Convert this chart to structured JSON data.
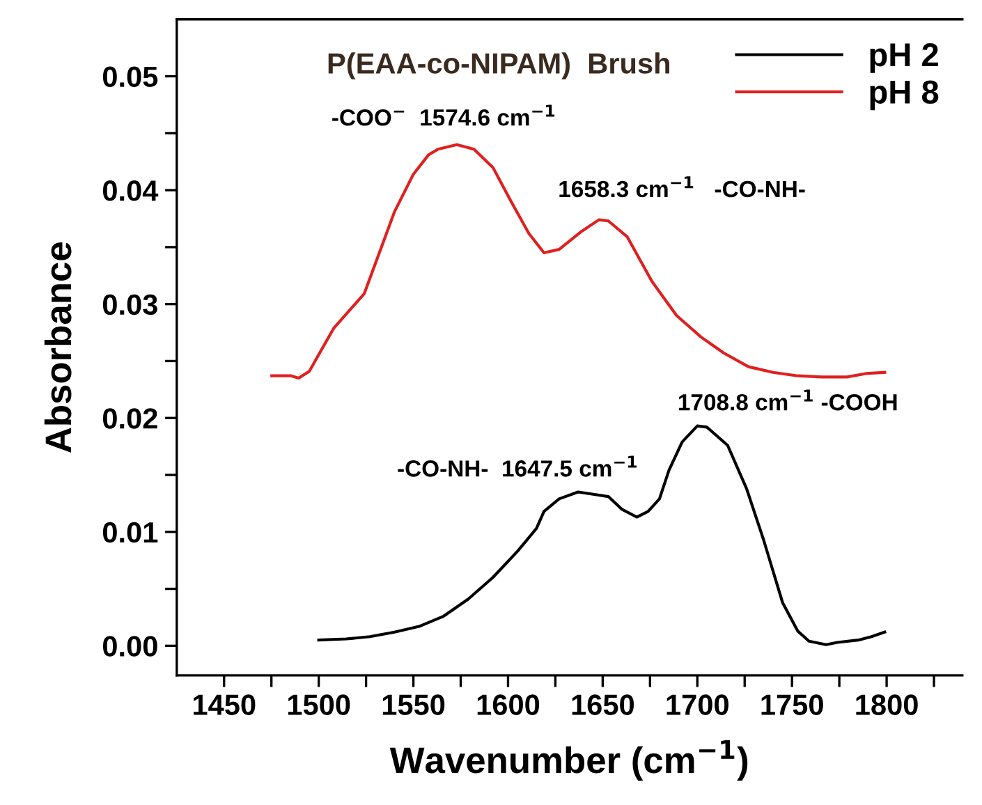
{
  "chart_data": {
    "type": "line",
    "title": "P(EAA-co-NIPAM)  Brush",
    "xlabel": "Wavenumber (cm$^{−1}$)",
    "ylabel": "Absorbance",
    "xlim": [
      1425,
      1840
    ],
    "ylim": [
      -0.0026,
      0.055
    ],
    "xticks": [
      1450,
      {
        "value": 1475,
        "label": null
      },
      1500,
      {
        "value": 1525,
        "label": null
      },
      1550,
      {
        "value": 1575,
        "label": null
      },
      1600,
      {
        "value": 1625,
        "label": null
      },
      1650,
      {
        "value": 1675,
        "label": null
      },
      1700,
      {
        "value": 1725,
        "label": null
      },
      1750,
      {
        "value": 1775,
        "label": null
      },
      1800,
      {
        "value": 1825,
        "label": null
      }
    ],
    "yticks": [
      {
        "value": 0,
        "label": "0.00"
      },
      {
        "value": 0.005,
        "label": null
      },
      {
        "value": 0.01,
        "label": "0.01"
      },
      {
        "value": 0.015,
        "label": null
      },
      {
        "value": 0.02,
        "label": "0.02"
      },
      {
        "value": 0.025,
        "label": null
      },
      {
        "value": 0.03,
        "label": "0.03"
      },
      {
        "value": 0.035,
        "label": null
      },
      {
        "value": 0.04,
        "label": "0.04"
      },
      {
        "value": 0.045,
        "label": null
      },
      {
        "value": 0.05,
        "label": "0.05"
      }
    ],
    "legend": "top right",
    "grid": false,
    "marker": "none",
    "line_style": "solid",
    "annotations": [
      "-COO$^{−}$  1574.6 cm$^{−1}$",
      "1658.3 cm$^{−1}$   -CO-NH-",
      "1708.8 cm$^{−1}$ -COOH",
      "-CO-NH-  1647.5 cm$^{−1}$"
    ],
    "series": [
      {
        "name": "pH 2",
        "color": "#000000",
        "x": [
          1500,
          1514.5,
          1527,
          1540,
          1553,
          1566,
          1579,
          1592,
          1605,
          1615,
          1619,
          1627,
          1637,
          1645,
          1653,
          1660,
          1668,
          1674,
          1680,
          1685,
          1692,
          1700,
          1705,
          1716,
          1726,
          1735,
          1745,
          1753,
          1759,
          1768,
          1774,
          1785,
          1792,
          1799
        ],
        "values": [
          0.0005,
          0.0006,
          0.0008,
          0.0012,
          0.0017,
          0.0026,
          0.0041,
          0.006,
          0.0083,
          0.0103,
          0.0118,
          0.0129,
          0.0135,
          0.0133,
          0.0131,
          0.012,
          0.0113,
          0.0118,
          0.0129,
          0.0154,
          0.0179,
          0.0193,
          0.0192,
          0.0176,
          0.0138,
          0.0093,
          0.0038,
          0.0013,
          0.0004,
          0.0001,
          0.0003,
          0.0005,
          0.0008,
          0.0012
        ]
      },
      {
        "name": "pH 8",
        "color": "#e02020",
        "x": [
          1475.2,
          1485.5,
          1489.4,
          1495,
          1508,
          1524,
          1540,
          1550,
          1558,
          1563,
          1573,
          1582,
          1592,
          1601,
          1611,
          1619,
          1627,
          1639,
          1648,
          1653,
          1663,
          1676,
          1689,
          1702,
          1714,
          1727,
          1740,
          1753,
          1766,
          1779,
          1789,
          1799
        ],
        "values": [
          0.0237,
          0.0237,
          0.0235,
          0.0241,
          0.0279,
          0.0309,
          0.0381,
          0.0414,
          0.0431,
          0.0436,
          0.044,
          0.0436,
          0.042,
          0.0392,
          0.0362,
          0.0345,
          0.0348,
          0.0364,
          0.0374,
          0.0373,
          0.0359,
          0.032,
          0.029,
          0.0271,
          0.0257,
          0.0245,
          0.024,
          0.0237,
          0.0236,
          0.0236,
          0.0239,
          0.024
        ]
      }
    ]
  }
}
